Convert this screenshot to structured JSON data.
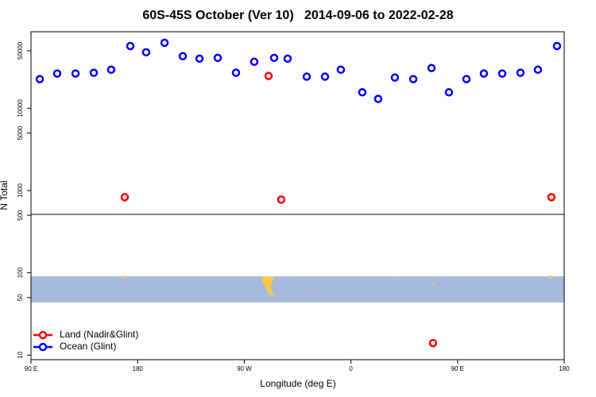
{
  "chart_data": {
    "type": "scatter",
    "title": "60S-45S October (Ver 10)   2014-09-06 to 2022-02-28",
    "x_label": "Longitude (deg E)",
    "y_label": "N Total",
    "log_y": true,
    "xlim": [
      90,
      540
    ],
    "ylim": [
      8.8,
      85000
    ],
    "xticks": [
      {
        "value": 90,
        "label": "90 E"
      },
      180,
      {
        "value": 270,
        "label": "90 W"
      },
      {
        "value": 360,
        "label": "0"
      },
      {
        "value": 450,
        "label": "90 E"
      },
      {
        "value": 540,
        "label": "180"
      }
    ],
    "yticks": [
      10,
      50,
      100,
      500,
      1000,
      5000,
      10000,
      50000
    ],
    "legend": "bottom-left",
    "series": [
      {
        "name": "Land (Nadir&Glint)",
        "color": "#ff0000",
        "x": [
          169.1,
          290.5,
          301.2,
          429.3,
          529.2
        ],
        "values": [
          830,
          24700,
          776,
          14,
          830
        ]
      },
      {
        "name": "Ocean (Glint)",
        "color": "#0000ff",
        "x": [
          97.4,
          112.1,
          127.6,
          143,
          157.7,
          173.8,
          187.2,
          202.7,
          218.1,
          232.2,
          247.6,
          263,
          278.4,
          295.2,
          306.6,
          322.7,
          338.1,
          351.5,
          369.6,
          383,
          397.1,
          412.6,
          428,
          442.7,
          457.5,
          472.2,
          487.7,
          503.1,
          517.8,
          533.9
        ],
        "values": [
          22600,
          26400,
          26400,
          27000,
          29400,
          57000,
          47900,
          62400,
          42900,
          40100,
          41000,
          27000,
          36700,
          41000,
          40100,
          24200,
          24200,
          29400,
          15600,
          13000,
          23600,
          22600,
          30800,
          15600,
          22600,
          26400,
          26400,
          27000,
          29400,
          57000
        ]
      }
    ]
  }
}
